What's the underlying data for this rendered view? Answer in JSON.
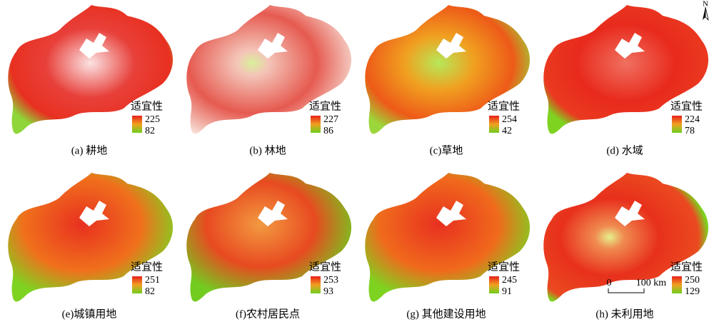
{
  "north": "N",
  "legend_title": "适宜性",
  "panels": [
    {
      "caption": "(a) 耕地",
      "max": 225,
      "min": 82
    },
    {
      "caption": "(b) 林地",
      "max": 227,
      "min": 86
    },
    {
      "caption": "(c)草地",
      "max": 254,
      "min": 42
    },
    {
      "caption": "(d) 水域",
      "max": 224,
      "min": 78
    },
    {
      "caption": "(e)城镇用地",
      "max": 251,
      "min": 82
    },
    {
      "caption": "(f)农村居民点",
      "max": 253,
      "min": 93
    },
    {
      "caption": "(g) 其他建设用地",
      "max": 245,
      "min": 91
    },
    {
      "caption": "(h) 未利用地",
      "max": 250,
      "min": 129
    }
  ],
  "scale_bar": {
    "start": "0",
    "end": "100 km"
  }
}
